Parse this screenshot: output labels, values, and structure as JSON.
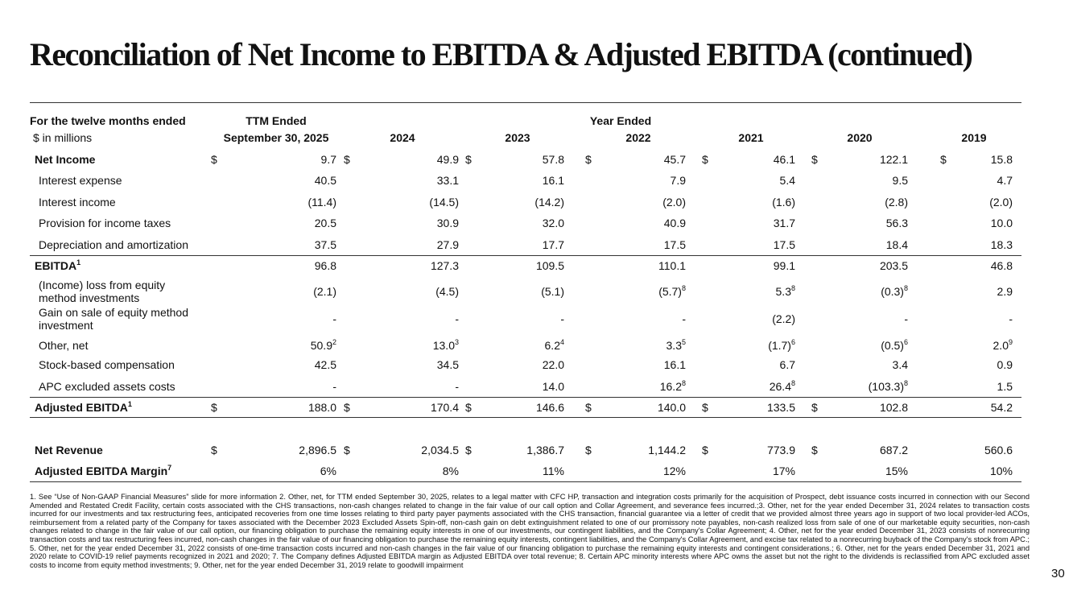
{
  "title": "Reconciliation of Net Income to EBITDA & Adjusted EBITDA (continued)",
  "table": {
    "header": {
      "row_label": "For the twelve months ended",
      "unit_label": "$ in millions",
      "ttm_top": "TTM Ended",
      "ttm_bottom": "September 30, 2025",
      "years_top": "Year Ended",
      "years": [
        "2024",
        "2023",
        "2022",
        "2021",
        "2020",
        "2019"
      ]
    },
    "rows": [
      {
        "label": "Net Income",
        "bold": true,
        "cells": [
          {
            "prefix": "$",
            "text": "9.7"
          },
          {
            "prefix": "$",
            "text": "49.9"
          },
          {
            "prefix": "$",
            "text": "57.8"
          },
          {
            "prefix": "$",
            "text": "45.7"
          },
          {
            "prefix": "$",
            "text": "46.1"
          },
          {
            "prefix": "$",
            "text": "122.1"
          },
          {
            "prefix": "$",
            "text": "15.8"
          }
        ]
      },
      {
        "label": "Interest expense",
        "cells": [
          {
            "text": "40.5"
          },
          {
            "text": "33.1"
          },
          {
            "text": "16.1"
          },
          {
            "text": "7.9"
          },
          {
            "text": "5.4"
          },
          {
            "text": "9.5"
          },
          {
            "text": "4.7"
          }
        ]
      },
      {
        "label": "Interest income",
        "cells": [
          {
            "text": "(11.4)"
          },
          {
            "text": "(14.5)"
          },
          {
            "text": "(14.2)"
          },
          {
            "text": "(2.0)"
          },
          {
            "text": "(1.6)"
          },
          {
            "text": "(2.8)"
          },
          {
            "text": "(2.0)"
          }
        ]
      },
      {
        "label": "Provision for income taxes",
        "cells": [
          {
            "text": "20.5"
          },
          {
            "text": "30.9"
          },
          {
            "text": "32.0"
          },
          {
            "text": "40.9"
          },
          {
            "text": "31.7"
          },
          {
            "text": "56.3"
          },
          {
            "text": "10.0"
          }
        ]
      },
      {
        "label": "Depreciation and amortization",
        "cells": [
          {
            "text": "37.5"
          },
          {
            "text": "27.9"
          },
          {
            "text": "17.7"
          },
          {
            "text": "17.5"
          },
          {
            "text": "17.5"
          },
          {
            "text": "18.4"
          },
          {
            "text": "18.3"
          }
        ]
      },
      {
        "label": "EBITDA",
        "label_note": "1",
        "bold": true,
        "rule_above": true,
        "cells": [
          {
            "text": "96.8"
          },
          {
            "text": "127.3"
          },
          {
            "text": "109.5"
          },
          {
            "text": "110.1"
          },
          {
            "text": "99.1"
          },
          {
            "text": "203.5"
          },
          {
            "text": "46.8"
          }
        ]
      },
      {
        "label": "(Income) loss from equity method investments",
        "cells": [
          {
            "text": "(2.1)"
          },
          {
            "text": "(4.5)"
          },
          {
            "text": "(5.1)"
          },
          {
            "text": "(5.7)",
            "note": "8"
          },
          {
            "text": "5.3",
            "note": "8"
          },
          {
            "text": "(0.3)",
            "note": "8"
          },
          {
            "text": "2.9"
          }
        ]
      },
      {
        "label": "Gain on sale of equity method investment",
        "cells": [
          {
            "text": "-"
          },
          {
            "text": "-"
          },
          {
            "text": "-"
          },
          {
            "text": "-"
          },
          {
            "text": "(2.2)"
          },
          {
            "text": "-"
          },
          {
            "text": "-"
          }
        ]
      },
      {
        "label": "Other, net",
        "cells": [
          {
            "text": "50.9",
            "note": "2"
          },
          {
            "text": "13.0",
            "note": "3"
          },
          {
            "text": "6.2",
            "note": "4"
          },
          {
            "text": "3.3",
            "note": "5"
          },
          {
            "text": "(1.7)",
            "note": "6"
          },
          {
            "text": "(0.5)",
            "note": "6"
          },
          {
            "text": "2.0",
            "note": "9"
          }
        ]
      },
      {
        "label": "Stock-based compensation",
        "cells": [
          {
            "text": "42.5"
          },
          {
            "text": "34.5"
          },
          {
            "text": "22.0"
          },
          {
            "text": "16.1"
          },
          {
            "text": "6.7"
          },
          {
            "text": "3.4"
          },
          {
            "text": "0.9"
          }
        ]
      },
      {
        "label": "APC excluded assets costs",
        "cells": [
          {
            "text": "-"
          },
          {
            "text": "-"
          },
          {
            "text": "14.0"
          },
          {
            "text": "16.2",
            "note": "8"
          },
          {
            "text": "26.4",
            "note": "8"
          },
          {
            "text": "(103.3)",
            "note": "8"
          },
          {
            "text": "1.5"
          }
        ]
      },
      {
        "label": "Adjusted EBITDA",
        "label_note": "1",
        "bold": true,
        "rule_above": true,
        "cells": [
          {
            "prefix": "$",
            "text": "188.0"
          },
          {
            "prefix": "$",
            "text": "170.4"
          },
          {
            "prefix": "$",
            "text": "146.6"
          },
          {
            "prefix": "$",
            "text": "140.0"
          },
          {
            "prefix": "$",
            "text": "133.5"
          },
          {
            "prefix": "$",
            "text": "102.8"
          },
          {
            "text": "54.2"
          }
        ]
      },
      {
        "label": "Net Revenue",
        "bold": true,
        "cells": [
          {
            "prefix": "$",
            "text": "2,896.5"
          },
          {
            "prefix": "$",
            "text": "2,034.5"
          },
          {
            "prefix": "$",
            "text": "1,386.7"
          },
          {
            "prefix": "$",
            "text": "1,144.2"
          },
          {
            "prefix": "$",
            "text": "773.9"
          },
          {
            "prefix": "$",
            "text": "687.2"
          },
          {
            "text": "560.6"
          }
        ]
      },
      {
        "label": "Adjusted EBITDA Margin",
        "label_note": "7",
        "bold": true,
        "cells": [
          {
            "text": "6%"
          },
          {
            "text": "8%"
          },
          {
            "text": "11%"
          },
          {
            "text": "12%"
          },
          {
            "text": "17%"
          },
          {
            "text": "15%"
          },
          {
            "text": "10%"
          }
        ]
      }
    ]
  },
  "footnote": "1. See “Use of Non-GAAP Financial Measures” slide for more information 2. Other, net, for TTM ended September 30, 2025, relates to a legal matter with CFC HP, transaction and integration costs primarily for the acquisition of Prospect, debt issuance costs incurred in connection with our Second Amended and Restated Credit Facility, certain costs associated with the CHS transactions, non-cash changes related to change in the fair value of our call option and Collar Agreement, and severance fees incurred.;3. Other, net for the year ended December 31, 2024 relates to transaction costs incurred for our investments and tax restructuring fees, anticipated recoveries from one time losses relating to third party payer payments associated with the CHS transaction, financial guarantee via a letter of credit that we provided almost three years ago in support of two local provider-led ACOs, reimbursement from a related party of the Company for taxes associated with the December 2023 Excluded Assets Spin-off, non-cash gain on debt extinguishment related to one of our promissory note payables, non-cash realized loss from sale of one of our marketable equity securities, non-cash changes related to change in the fair value of our call option, our financing obligation to purchase the remaining equity interests in one of our investments, our contingent liabilities, and the Company's Collar Agreement; 4. Other, net for the year ended December 31, 2023 consists of nonrecurring transaction costs and tax restructuring fees incurred, non-cash changes in the fair value of our financing obligation to purchase the remaining equity interests, contingent liabilities, and the Company's Collar Agreement, and excise tax related to a nonrecurring buyback of the Company's stock from APC.; 5. Other, net for the year ended December 31, 2022 consists of one-time transaction costs incurred and non-cash changes in the fair value of our financing obligation to purchase the remaining equity interests and contingent considerations.; 6. Other, net for the years ended December 31, 2021 and 2020 relate to COVID-19 relief payments recognized in 2021 and 2020; 7. The Company defines Adjusted EBITDA margin as Adjusted EBITDA over total revenue; 8. Certain APC minority interests where APC owns the asset but not the right to the dividends is reclassified from APC excluded asset costs to income from equity method investments; 9. Other, net for the year ended December 31, 2019 relate to goodwill impairment",
  "page_number": "30"
}
